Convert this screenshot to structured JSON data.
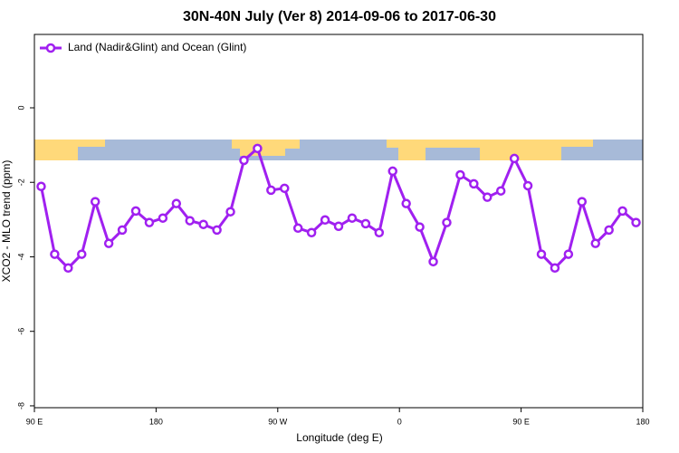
{
  "chart_data": {
    "type": "line",
    "title": "30N-40N July (Ver 8)   2014-09-06 to 2017-06-30",
    "x_label": "Longitude (deg E)",
    "y_label": "XCO2 - MLO trend (ppm)",
    "x": [
      95,
      105,
      115,
      125,
      135,
      145,
      155,
      165,
      175,
      185,
      195,
      205,
      215,
      225,
      235,
      245,
      255,
      265,
      275,
      285,
      295,
      305,
      315,
      325,
      335,
      345,
      355,
      365,
      375,
      385,
      395,
      405,
      415,
      425,
      435,
      445,
      455,
      465,
      475,
      485,
      495,
      505,
      515,
      525,
      535
    ],
    "series": [
      {
        "name": "Land (Nadir&Glint) and Ocean (Glint)",
        "color": "#a020f0",
        "values": [
          -2.11,
          -3.93,
          -4.3,
          -3.93,
          -2.52,
          -3.64,
          -3.28,
          -2.77,
          -3.08,
          -2.96,
          -2.57,
          -3.03,
          -3.13,
          -3.28,
          -2.79,
          -1.41,
          -1.09,
          -2.21,
          -2.16,
          -3.23,
          -3.35,
          -3.01,
          -3.18,
          -2.96,
          -3.11,
          -3.35,
          -1.7,
          -2.57,
          -3.2,
          -4.13,
          -3.08,
          -1.8,
          -2.04,
          -2.4,
          -2.23,
          -1.36,
          -2.09,
          -3.93,
          -4.3,
          -3.93,
          -2.52,
          -3.64,
          -3.28,
          -2.77,
          -3.08
        ]
      }
    ],
    "xlim": [
      90,
      540
    ],
    "xticks": [
      {
        "value": 90,
        "label": "90 E"
      },
      180,
      {
        "value": 270,
        "label": "90 W"
      },
      {
        "value": 360,
        "label": "0"
      },
      {
        "value": 450,
        "label": "90 E"
      },
      {
        "value": 540,
        "label": "180"
      }
    ],
    "ylim": [
      -8.05,
      1.97
    ],
    "yticks": [
      0,
      -2,
      -4,
      -6,
      -8
    ],
    "legend": "top-left"
  }
}
